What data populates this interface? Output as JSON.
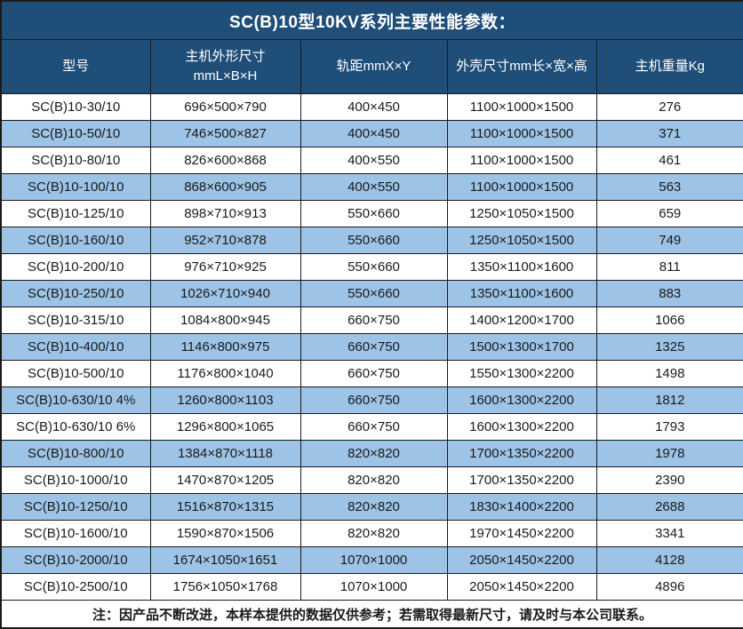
{
  "colors": {
    "header_bg": "#1F4E79",
    "stripe_bg": "#9DC3E6",
    "border": "#1A1A1A",
    "header_text": "#FFFFFF",
    "body_text": "#1A1A1A"
  },
  "title": "SC(B)10型10KV系列主要性能参数：",
  "table": {
    "columns": [
      {
        "key": "model",
        "label": "型号"
      },
      {
        "key": "host-dimensions",
        "label": "主机外形尺寸",
        "sublabel": "mmL×B×H"
      },
      {
        "key": "rail-gauge",
        "label": "轨距mmX×Y"
      },
      {
        "key": "shell-dimensions",
        "label": "外壳尺寸mm长×宽×高"
      },
      {
        "key": "weight",
        "label": "主机重量Kg"
      }
    ],
    "rows": [
      [
        "SC(B)10-30/10",
        "696×500×790",
        "400×450",
        "1100×1000×1500",
        "276"
      ],
      [
        "SC(B)10-50/10",
        "746×500×827",
        "400×450",
        "1100×1000×1500",
        "371"
      ],
      [
        "SC(B)10-80/10",
        "826×600×868",
        "400×550",
        "1100×1000×1500",
        "461"
      ],
      [
        "SC(B)10-100/10",
        "868×600×905",
        "400×550",
        "1100×1000×1500",
        "563"
      ],
      [
        "SC(B)10-125/10",
        "898×710×913",
        "550×660",
        "1250×1050×1500",
        "659"
      ],
      [
        "SC(B)10-160/10",
        "952×710×878",
        "550×660",
        "1250×1050×1500",
        "749"
      ],
      [
        "SC(B)10-200/10",
        "976×710×925",
        "550×660",
        "1350×1100×1600",
        "811"
      ],
      [
        "SC(B)10-250/10",
        "1026×710×940",
        "550×660",
        "1350×1100×1600",
        "883"
      ],
      [
        "SC(B)10-315/10",
        "1084×800×945",
        "660×750",
        "1400×1200×1700",
        "1066"
      ],
      [
        "SC(B)10-400/10",
        "1146×800×975",
        "660×750",
        "1500×1300×1700",
        "1325"
      ],
      [
        "SC(B)10-500/10",
        "1176×800×1040",
        "660×750",
        "1550×1300×2200",
        "1498"
      ],
      [
        "SC(B)10-630/10 4%",
        "1260×800×1103",
        "660×750",
        "1600×1300×2200",
        "1812"
      ],
      [
        "SC(B)10-630/10 6%",
        "1296×800×1065",
        "660×750",
        "1600×1300×2200",
        "1793"
      ],
      [
        "SC(B)10-800/10",
        "1384×870×1118",
        "820×820",
        "1700×1350×2200",
        "1978"
      ],
      [
        "SC(B)10-1000/10",
        "1470×870×1205",
        "820×820",
        "1700×1350×2200",
        "2390"
      ],
      [
        "SC(B)10-1250/10",
        "1516×870×1315",
        "820×820",
        "1830×1400×2200",
        "2688"
      ],
      [
        "SC(B)10-1600/10",
        "1590×870×1506",
        "820×820",
        "1970×1450×2200",
        "3341"
      ],
      [
        "SC(B)10-2000/10",
        "1674×1050×1651",
        "1070×1000",
        "2050×1450×2200",
        "4128"
      ],
      [
        "SC(B)10-2500/10",
        "1756×1050×1768",
        "1070×1000",
        "2050×1450×2200",
        "4896"
      ]
    ]
  },
  "note": "注：因产品不断改进，本样本提供的数据仅供参考；若需取得最新尺寸，请及时与本公司联系。"
}
